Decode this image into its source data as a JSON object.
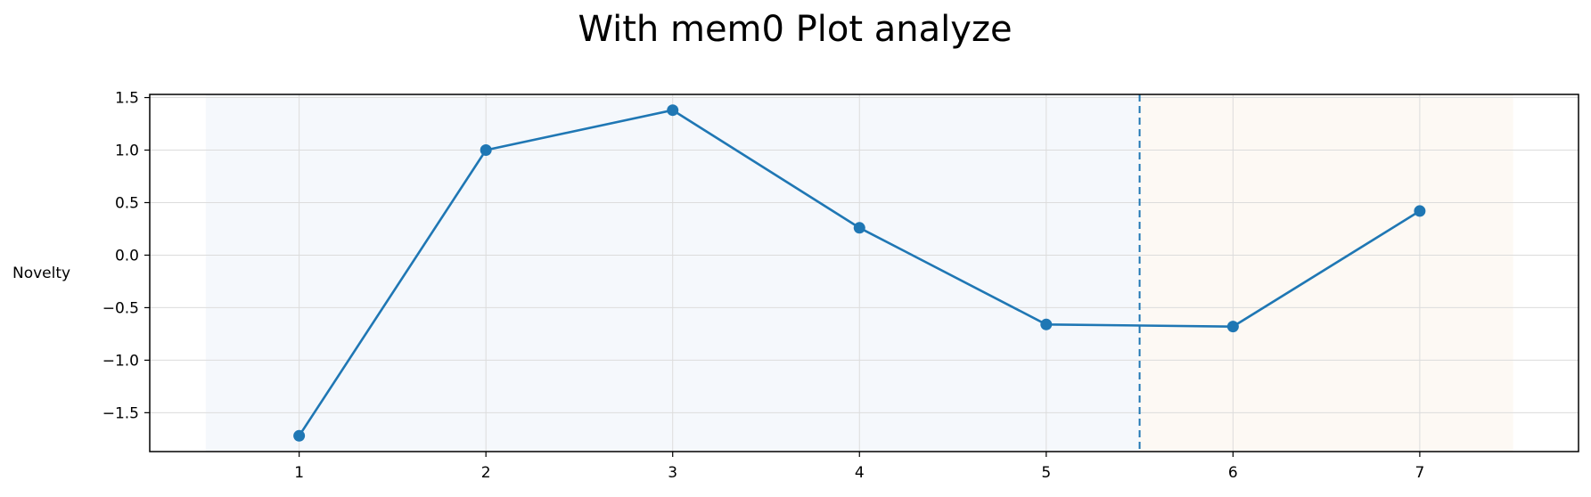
{
  "chart_data": {
    "type": "line",
    "title": "With mem0 Plot analyze",
    "xlabel": "",
    "ylabel": "Novelty",
    "x": [
      1,
      2,
      3,
      4,
      5,
      6,
      7
    ],
    "series": [
      {
        "values": [
          -1.72,
          1.0,
          1.38,
          0.26,
          -0.66,
          -0.68,
          0.42
        ]
      }
    ],
    "xlim": [
      0.2,
      7.85
    ],
    "ylim": [
      -1.87,
      1.53
    ],
    "xticks": [
      1,
      2,
      3,
      4,
      5,
      6,
      7
    ],
    "yticks": [
      1.5,
      1.0,
      0.5,
      0.0,
      -0.5,
      -1.0,
      -1.5
    ],
    "ytick_labels": [
      "1.5",
      "1.0",
      "0.5",
      "0.0",
      "−0.5",
      "−1.0",
      "−1.5"
    ],
    "grid": true,
    "shaded_regions": [
      {
        "from": 0.5,
        "to": 5.5,
        "color": "#f5f8fc"
      },
      {
        "from": 5.5,
        "to": 7.5,
        "color": "#fdf9f4"
      }
    ],
    "vline": {
      "x": 5.5,
      "style": "dashed"
    },
    "line_color": "#1f77b4"
  }
}
